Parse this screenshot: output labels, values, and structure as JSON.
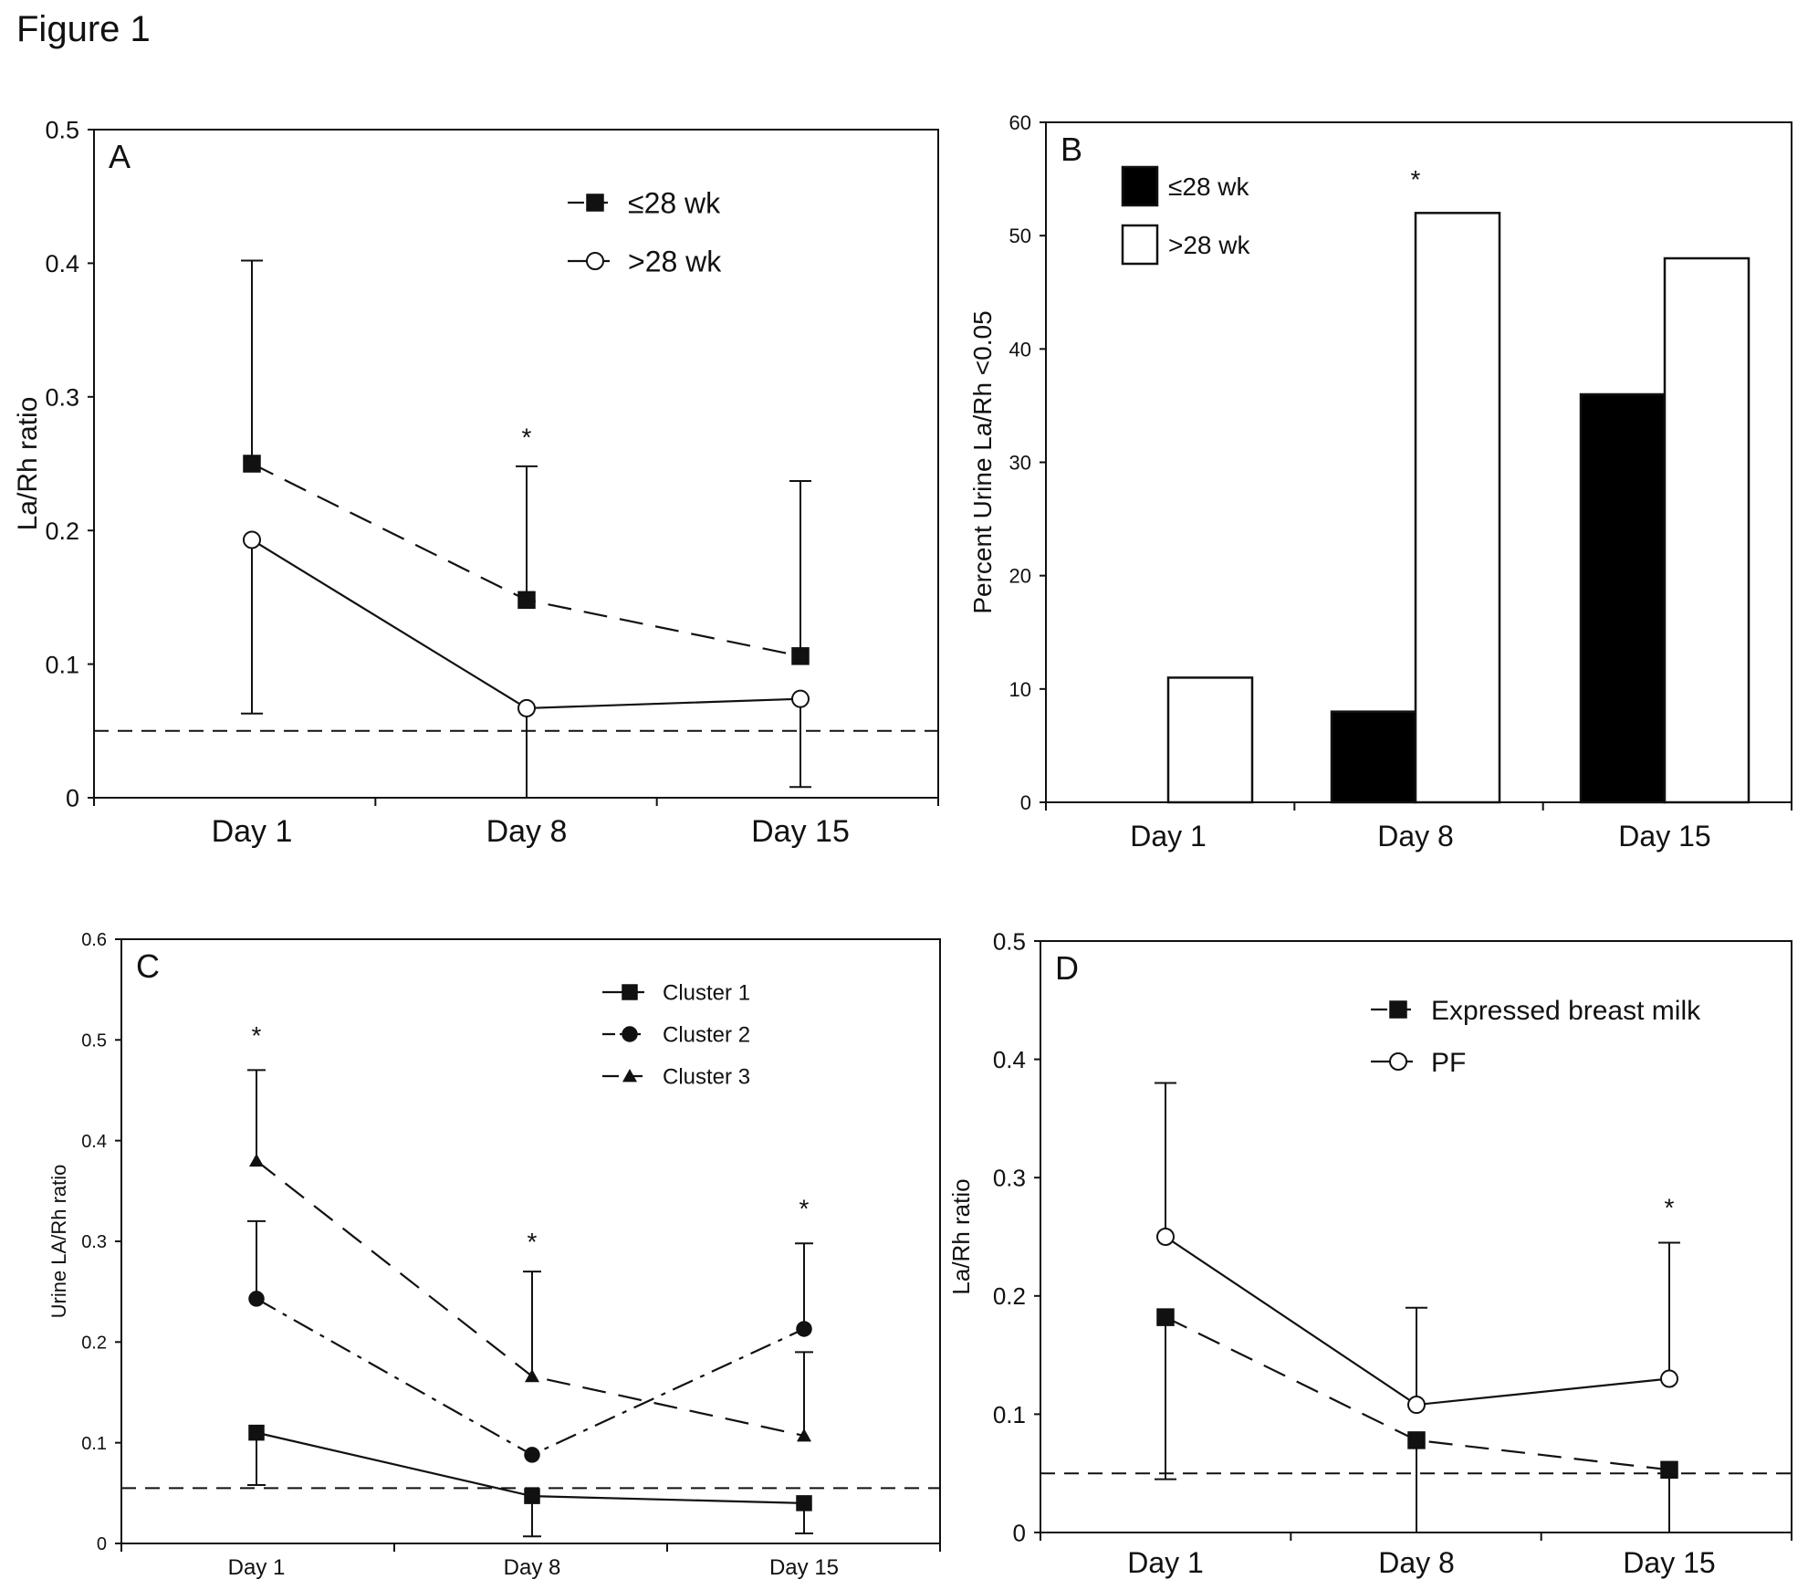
{
  "figure_title": "Figure 1",
  "chart_data": [
    {
      "panel": "A",
      "type": "line",
      "categories": [
        "Day 1",
        "Day 8",
        "Day 15"
      ],
      "ylabel": "La/Rh ratio",
      "ylim": [
        0,
        0.5
      ],
      "yticks": [
        0,
        0.1,
        0.2,
        0.3,
        0.4,
        0.5
      ],
      "ytick_labels": [
        "0",
        "0.1",
        "0.2",
        "0.3",
        "0.4",
        "0.5"
      ],
      "reference_line": 0.05,
      "legend_position": "top-right",
      "series": [
        {
          "name": "≤28 wk",
          "values": [
            0.25,
            0.148,
            0.106
          ],
          "err_up": [
            0.402,
            0.248,
            0.237
          ],
          "err_down": [
            null,
            null,
            null
          ],
          "marker": "square-filled",
          "dash": "dashed",
          "color": "#111111"
        },
        {
          "name": ">28 wk",
          "values": [
            0.193,
            0.067,
            0.074
          ],
          "err_up": [
            null,
            null,
            null
          ],
          "err_down": [
            0.063,
            0.0,
            0.008
          ],
          "marker": "circle-open",
          "dash": "solid",
          "color": "#111111"
        }
      ],
      "annotations": [
        {
          "text": "*",
          "category": "Day 8",
          "y": 0.27
        }
      ]
    },
    {
      "panel": "B",
      "type": "bar",
      "categories": [
        "Day 1",
        "Day 8",
        "Day 15"
      ],
      "ylabel": "Percent Urine La/Rh <0.05",
      "ylim": [
        0,
        60
      ],
      "yticks": [
        0,
        10,
        20,
        30,
        40,
        50,
        60
      ],
      "ytick_labels": [
        "0",
        "10",
        "20",
        "30",
        "40",
        "50",
        "60"
      ],
      "legend_position": "top-left",
      "series": [
        {
          "name": "≤28 wk",
          "values": [
            0,
            8,
            36
          ],
          "fill": "#000000"
        },
        {
          "name": ">28 wk",
          "values": [
            11,
            52,
            48
          ],
          "fill": "#ffffff"
        }
      ],
      "annotations": [
        {
          "text": "*",
          "category": "Day 8",
          "y": 55
        }
      ]
    },
    {
      "panel": "C",
      "type": "line",
      "categories": [
        "Day 1",
        "Day 8",
        "Day 15"
      ],
      "ylabel": "Urine LA/Rh ratio",
      "ylim": [
        0,
        0.6
      ],
      "yticks": [
        0,
        0.1,
        0.2,
        0.3,
        0.4,
        0.5,
        0.6
      ],
      "ytick_labels": [
        "0",
        "0.1",
        "0.2",
        "0.3",
        "0.4",
        "0.5",
        "0.6"
      ],
      "reference_line": 0.055,
      "legend_position": "top-right",
      "series": [
        {
          "name": "Cluster 1",
          "values": [
            0.11,
            0.047,
            0.04
          ],
          "err_up": [
            null,
            null,
            null
          ],
          "err_down": [
            0.058,
            0.007,
            0.01
          ],
          "marker": "square-filled",
          "dash": "solid",
          "color": "#111111"
        },
        {
          "name": "Cluster 2",
          "values": [
            0.243,
            0.088,
            0.213
          ],
          "err_up": [
            0.32,
            null,
            0.298
          ],
          "err_down": [
            null,
            null,
            null
          ],
          "marker": "circle-filled",
          "dash": "dashdot",
          "color": "#111111"
        },
        {
          "name": "Cluster 3",
          "values": [
            0.38,
            0.166,
            0.107
          ],
          "err_up": [
            0.47,
            0.27,
            0.19
          ],
          "err_down": [
            null,
            null,
            null
          ],
          "marker": "triangle-filled",
          "dash": "dashed",
          "color": "#111111"
        }
      ],
      "annotations": [
        {
          "text": "*",
          "category": "Day 1",
          "y": 0.505
        },
        {
          "text": "*",
          "category": "Day 8",
          "y": 0.3
        },
        {
          "text": "*",
          "category": "Day 15",
          "y": 0.333
        }
      ]
    },
    {
      "panel": "D",
      "type": "line",
      "categories": [
        "Day 1",
        "Day 8",
        "Day 15"
      ],
      "ylabel": "La/Rh ratio",
      "ylim": [
        0,
        0.5
      ],
      "yticks": [
        0,
        0.1,
        0.2,
        0.3,
        0.4,
        0.5
      ],
      "ytick_labels": [
        "0",
        "0.1",
        "0.2",
        "0.3",
        "0.4",
        "0.5"
      ],
      "reference_line": 0.05,
      "legend_position": "top-right",
      "series": [
        {
          "name": "Expressed breast milk",
          "values": [
            0.182,
            0.078,
            0.053
          ],
          "err_up": [
            null,
            null,
            null
          ],
          "err_down": [
            0.045,
            0.0,
            0.0
          ],
          "marker": "square-filled",
          "dash": "dashed",
          "color": "#111111"
        },
        {
          "name": "PF",
          "values": [
            0.25,
            0.108,
            0.13
          ],
          "err_up": [
            0.38,
            0.19,
            0.245
          ],
          "err_down": [
            null,
            null,
            null
          ],
          "marker": "circle-open",
          "dash": "solid",
          "color": "#111111"
        }
      ],
      "annotations": [
        {
          "text": "*",
          "category": "Day 15",
          "y": 0.275
        }
      ]
    }
  ]
}
